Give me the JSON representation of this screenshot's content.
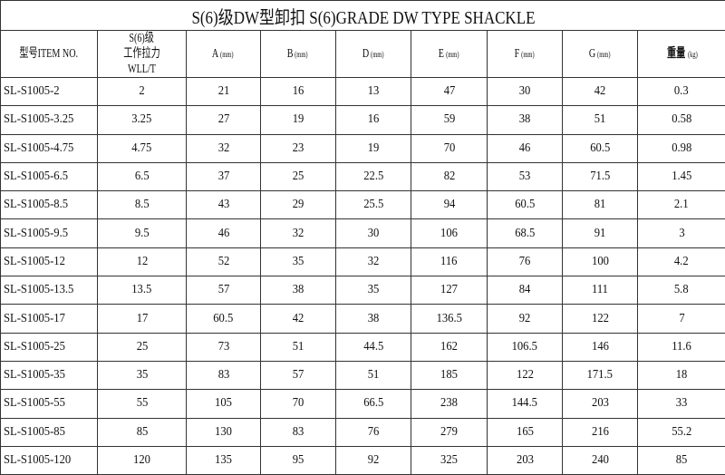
{
  "title": "S(6)级DW型卸扣 S(6)GRADE DW TYPE SHACKLE",
  "headers": [
    {
      "main": "型号ITEM NO.",
      "unit": ""
    },
    {
      "main": "S(6)级",
      "sub": "工作拉力 WLL/T"
    },
    {
      "main": "A",
      "unit": "(mm)"
    },
    {
      "main": "B",
      "unit": "(mm)"
    },
    {
      "main": "D",
      "unit": "(mm)"
    },
    {
      "main": "E",
      "unit": "(mm)"
    },
    {
      "main": "F",
      "unit": "(mm)"
    },
    {
      "main": "G",
      "unit": "(mm)"
    },
    {
      "main": "重量",
      "unit": "(kg)"
    }
  ],
  "rows": [
    [
      "SL-S1005-2",
      "2",
      "21",
      "16",
      "13",
      "47",
      "30",
      "42",
      "0.3"
    ],
    [
      "SL-S1005-3.25",
      "3.25",
      "27",
      "19",
      "16",
      "59",
      "38",
      "51",
      "0.58"
    ],
    [
      "SL-S1005-4.75",
      "4.75",
      "32",
      "23",
      "19",
      "70",
      "46",
      "60.5",
      "0.98"
    ],
    [
      "SL-S1005-6.5",
      "6.5",
      "37",
      "25",
      "22.5",
      "82",
      "53",
      "71.5",
      "1.45"
    ],
    [
      "SL-S1005-8.5",
      "8.5",
      "43",
      "29",
      "25.5",
      "94",
      "60.5",
      "81",
      "2.1"
    ],
    [
      "SL-S1005-9.5",
      "9.5",
      "46",
      "32",
      "30",
      "106",
      "68.5",
      "91",
      "3"
    ],
    [
      "SL-S1005-12",
      "12",
      "52",
      "35",
      "32",
      "116",
      "76",
      "100",
      "4.2"
    ],
    [
      "SL-S1005-13.5",
      "13.5",
      "57",
      "38",
      "35",
      "127",
      "84",
      "111",
      "5.8"
    ],
    [
      "SL-S1005-17",
      "17",
      "60.5",
      "42",
      "38",
      "136.5",
      "92",
      "122",
      "7"
    ],
    [
      "SL-S1005-25",
      "25",
      "73",
      "51",
      "44.5",
      "162",
      "106.5",
      "146",
      "11.6"
    ],
    [
      "SL-S1005-35",
      "35",
      "83",
      "57",
      "51",
      "185",
      "122",
      "171.5",
      "18"
    ],
    [
      "SL-S1005-55",
      "55",
      "105",
      "70",
      "66.5",
      "238",
      "144.5",
      "203",
      "33"
    ],
    [
      "SL-S1005-85",
      "85",
      "130",
      "83",
      "76",
      "279",
      "165",
      "216",
      "55.2"
    ],
    [
      "SL-S1005-120",
      "120",
      "135",
      "95",
      "92",
      "325",
      "203",
      "240",
      "85"
    ]
  ]
}
